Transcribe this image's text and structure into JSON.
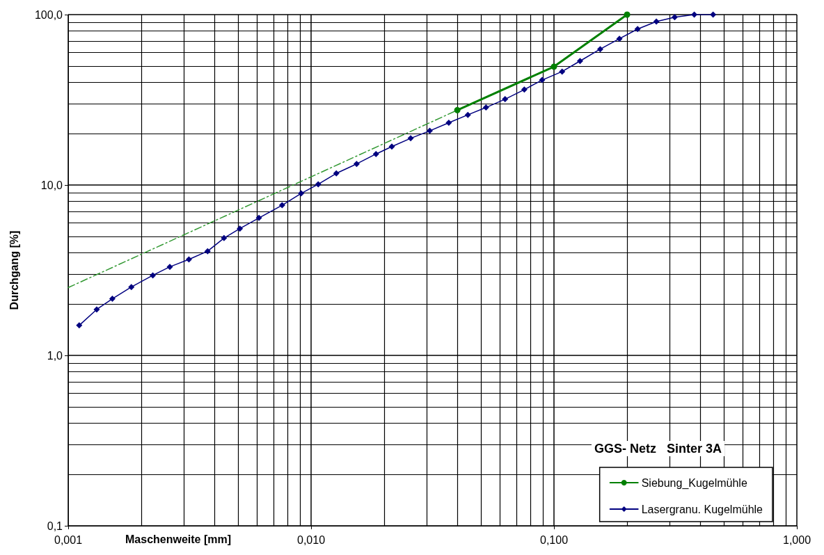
{
  "chart_data": {
    "type": "line",
    "xlabel": "Maschenweite [mm]",
    "ylabel": "Durchgang [%]",
    "legend_title": "GGS- Netz   Sinter 3A",
    "log": "xy",
    "grid": true,
    "legend": "bottom right",
    "xlim": [
      0.001,
      1
    ],
    "ylim": [
      0.1,
      100
    ],
    "xticks": [
      {
        "value": 0.001,
        "label": "0,001"
      },
      {
        "value": 0.01,
        "label": "0,010"
      },
      {
        "value": 0.1,
        "label": "0,100"
      },
      {
        "value": 1,
        "label": "1,000"
      }
    ],
    "yticks": [
      {
        "value": 0.1,
        "label": "0,1"
      },
      {
        "value": 1,
        "label": "1,0"
      },
      {
        "value": 10,
        "label": "10,0"
      },
      {
        "value": 100,
        "label": "100,0"
      }
    ],
    "series": [
      {
        "name": "Siebung_Kugelmühle",
        "color": "#008000",
        "marker": "circle",
        "x": [
          0.04,
          0.1,
          0.2
        ],
        "values": [
          27.5,
          49.5,
          100
        ]
      },
      {
        "name": "Lasergranu. Kugelmühle",
        "color": "#000080",
        "marker": "diamond",
        "x": [
          0.00111,
          0.00131,
          0.00152,
          0.00182,
          0.00223,
          0.00262,
          0.00314,
          0.00375,
          0.00438,
          0.00509,
          0.0061,
          0.0076,
          0.0091,
          0.0107,
          0.0127,
          0.0154,
          0.0185,
          0.0215,
          0.0257,
          0.0308,
          0.0369,
          0.0442,
          0.0525,
          0.0629,
          0.0755,
          0.0894,
          0.108,
          0.128,
          0.155,
          0.186,
          0.221,
          0.264,
          0.314,
          0.378,
          0.452
        ],
        "values": [
          1.5,
          1.86,
          2.15,
          2.52,
          2.95,
          3.31,
          3.66,
          4.09,
          4.88,
          5.55,
          6.41,
          7.61,
          8.93,
          10.1,
          11.7,
          13.3,
          15.2,
          16.8,
          18.8,
          20.8,
          23.2,
          25.8,
          28.5,
          31.9,
          36.3,
          41.3,
          46.3,
          53.4,
          62.7,
          72.2,
          82.3,
          91,
          96.6,
          100,
          100
        ]
      },
      {
        "type": "line",
        "color": "#339933",
        "marker": "none",
        "line_style": "dashed",
        "x": [
          0.001,
          0.04
        ],
        "values": [
          2.5,
          27.5
        ]
      }
    ]
  }
}
